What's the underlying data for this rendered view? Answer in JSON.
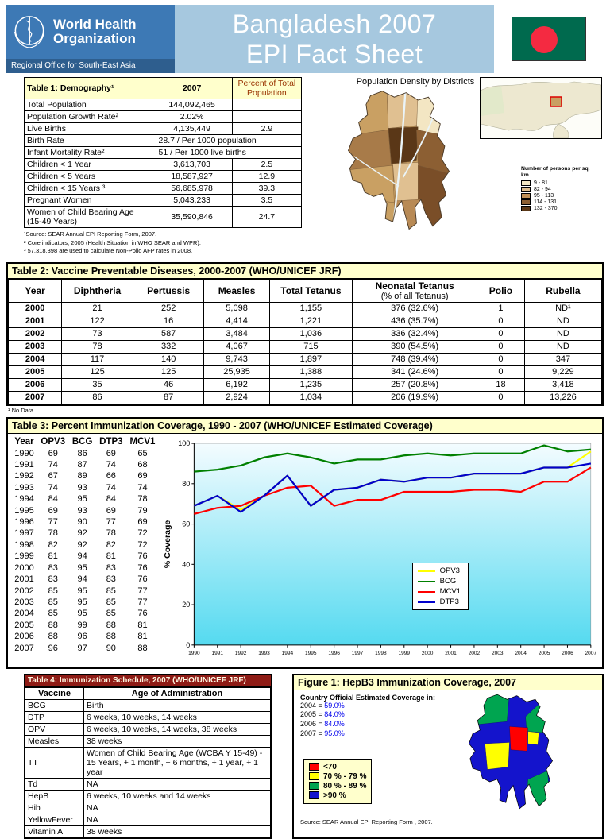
{
  "header": {
    "org_name_line1": "World Health",
    "org_name_line2": "Organization",
    "region": "Regional Office for South-East Asia",
    "title_line1": "Bangladesh 2007",
    "title_line2": "EPI Fact Sheet",
    "flag_green": "#006A4E",
    "flag_red": "#F42A41"
  },
  "table1": {
    "title": "Table 1:  Demography¹",
    "col_year": "2007",
    "col_percent": "Percent of Total Population",
    "rows": [
      {
        "label": "Total Population",
        "value": "144,092,465",
        "percent": ""
      },
      {
        "label": "Population Growth Rate²",
        "value": "2.02%",
        "percent": ""
      },
      {
        "label": "Live Births",
        "value": "4,135,449",
        "percent": "2.9"
      },
      {
        "label": "Birth Rate",
        "value": "28.7 / Per 1000 population",
        "span": true
      },
      {
        "label": "Infant Mortality Rate²",
        "value": "51 / Per 1000 live births",
        "span": true
      },
      {
        "label": "Children < 1 Year",
        "value": "3,613,703",
        "percent": "2.5"
      },
      {
        "label": "Children < 5 Years",
        "value": "18,587,927",
        "percent": "12.9"
      },
      {
        "label": "Children < 15 Years ³",
        "value": "56,685,978",
        "percent": "39.3"
      },
      {
        "label": "Pregnant Women",
        "value": "5,043,233",
        "percent": "3.5"
      },
      {
        "label": "Women of Child Bearing Age (15-49 Years)",
        "value": "35,590,846",
        "percent": "24.7"
      }
    ],
    "footnotes": [
      "¹Source: SEAR Annual EPI Reporting Form, 2007.",
      "² Core indicators, 2005 (Health Situation in WHO SEAR and WPR).",
      "³ 57,318,398 are used to calculate Non-Polio AFP rates in 2008."
    ]
  },
  "density_map": {
    "title": "Population Density by Districts",
    "legend_title": "Number of persons per sq. km",
    "legend_items": [
      {
        "label": "9 - 81",
        "color": "#F3E6C3"
      },
      {
        "label": "82 - 94",
        "color": "#E0C091"
      },
      {
        "label": "95 - 113",
        "color": "#C09058"
      },
      {
        "label": "114 - 131",
        "color": "#8C5F33"
      },
      {
        "label": "132 - 370",
        "color": "#5A3717"
      }
    ]
  },
  "table2": {
    "title": "Table 2:  Vaccine Preventable Diseases, 2000-2007 (WHO/UNICEF JRF)",
    "headers": [
      "Year",
      "Diphtheria",
      "Pertussis",
      "Measles",
      "Total Tetanus",
      [
        "Neonatal Tetanus",
        "(% of all Tetanus)"
      ],
      "Polio",
      "Rubella"
    ],
    "rows": [
      [
        "2000",
        "21",
        "252",
        "5,098",
        "1,155",
        "376 (32.6%)",
        "1",
        "ND¹"
      ],
      [
        "2001",
        "122",
        "16",
        "4,414",
        "1,221",
        "436 (35.7%)",
        "0",
        "ND"
      ],
      [
        "2002",
        "73",
        "587",
        "3,484",
        "1,036",
        "336 (32.4%)",
        "0",
        "ND"
      ],
      [
        "2003",
        "78",
        "332",
        "4,067",
        "715",
        "390 (54.5%)",
        "0",
        "ND"
      ],
      [
        "2004",
        "117",
        "140",
        "9,743",
        "1,897",
        "748 (39.4%)",
        "0",
        "347"
      ],
      [
        "2005",
        "125",
        "125",
        "25,935",
        "1,388",
        "341 (24.6%)",
        "0",
        "9,229"
      ],
      [
        "2006",
        "35",
        "46",
        "6,192",
        "1,235",
        "257 (20.8%)",
        "18",
        "3,418"
      ],
      [
        "2007",
        "86",
        "87",
        "2,924",
        "1,034",
        "206 (19.9%)",
        "0",
        "13,226"
      ]
    ],
    "footnote": "¹ No Data"
  },
  "table3": {
    "title": "Table 3:  Percent Immunization Coverage, 1990 - 2007 (WHO/UNICEF Estimated Coverage)",
    "headers": [
      "Year",
      "OPV3",
      "BCG",
      "DTP3",
      "MCV1"
    ],
    "rows": [
      [
        "1990",
        69,
        86,
        69,
        65
      ],
      [
        "1991",
        74,
        87,
        74,
        68
      ],
      [
        "1992",
        67,
        89,
        66,
        69
      ],
      [
        "1993",
        74,
        93,
        74,
        74
      ],
      [
        "1994",
        84,
        95,
        84,
        78
      ],
      [
        "1995",
        69,
        93,
        69,
        79
      ],
      [
        "1996",
        77,
        90,
        77,
        69
      ],
      [
        "1997",
        78,
        92,
        78,
        72
      ],
      [
        "1998",
        82,
        92,
        82,
        72
      ],
      [
        "1999",
        81,
        94,
        81,
        76
      ],
      [
        "2000",
        83,
        95,
        83,
        76
      ],
      [
        "2001",
        83,
        94,
        83,
        76
      ],
      [
        "2002",
        85,
        95,
        85,
        77
      ],
      [
        "2003",
        85,
        95,
        85,
        77
      ],
      [
        "2004",
        85,
        95,
        85,
        76
      ],
      [
        "2005",
        88,
        99,
        88,
        81
      ],
      [
        "2006",
        88,
        96,
        88,
        81
      ],
      [
        "2007",
        96,
        97,
        90,
        88
      ]
    ]
  },
  "chart_data": {
    "type": "line",
    "title": "Percent Immunization Coverage, 1990 - 2007",
    "ylabel": "% Coverage",
    "ylim": [
      0,
      100
    ],
    "grid": false,
    "legend_position": "center-right",
    "bg_top": "#F4FCFF",
    "bg_bottom": "#55DAF0",
    "x": [
      1990,
      1991,
      1992,
      1993,
      1994,
      1995,
      1996,
      1997,
      1998,
      1999,
      2000,
      2001,
      2002,
      2003,
      2004,
      2005,
      2006,
      2007
    ],
    "series": [
      {
        "name": "OPV3",
        "color": "#FFFF00",
        "values": [
          69,
          74,
          67,
          74,
          84,
          69,
          77,
          78,
          82,
          81,
          83,
          83,
          85,
          85,
          85,
          88,
          88,
          96
        ]
      },
      {
        "name": "BCG",
        "color": "#008000",
        "values": [
          86,
          87,
          89,
          93,
          95,
          93,
          90,
          92,
          92,
          94,
          95,
          94,
          95,
          95,
          95,
          99,
          96,
          97
        ]
      },
      {
        "name": "MCV1",
        "color": "#FF0000",
        "values": [
          65,
          68,
          69,
          74,
          78,
          79,
          69,
          72,
          72,
          76,
          76,
          76,
          77,
          77,
          76,
          81,
          81,
          88
        ]
      },
      {
        "name": "DTP3",
        "color": "#0000CC",
        "values": [
          69,
          74,
          66,
          74,
          84,
          69,
          77,
          78,
          82,
          81,
          83,
          83,
          85,
          85,
          85,
          88,
          88,
          90
        ]
      }
    ]
  },
  "table4": {
    "title": "Table 4:  Immunization Schedule, 2007 (WHO/UNICEF JRF)",
    "headers": [
      "Vaccine",
      "Age of Administration"
    ],
    "rows": [
      [
        "BCG",
        "Birth"
      ],
      [
        "DTP",
        "6 weeks, 10 weeks, 14 weeks"
      ],
      [
        "OPV",
        "6 weeks, 10 weeks, 14 weeks, 38 weeks"
      ],
      [
        "Measles",
        "38 weeks"
      ],
      [
        "TT",
        "Women of Child Bearing Age (WCBA Y 15-49) - 15 Years, + 1 month, + 6 months, + 1 year, + 1 year"
      ],
      [
        "Td",
        "NA"
      ],
      [
        "HepB",
        "6 weeks, 10 weeks and 14 weeks"
      ],
      [
        "Hib",
        "NA"
      ],
      [
        "YellowFever",
        "NA"
      ],
      [
        "Vitamin A",
        "38 weeks"
      ]
    ]
  },
  "figure1": {
    "title": "Figure 1:  HepB3 Immunization Coverage, 2007",
    "coverage_label": "Country Official Estimated Coverage in:",
    "coverage": [
      {
        "year": "2004",
        "value": "59.0%"
      },
      {
        "year": "2005",
        "value": "84.0%"
      },
      {
        "year": "2006",
        "value": "84.0%"
      },
      {
        "year": "2007",
        "value": "95.0%"
      }
    ],
    "legend": [
      {
        "label": "<70",
        "color": "#FF0000"
      },
      {
        "label": "70 % - 79 %",
        "color": "#FFFF00"
      },
      {
        "label": "80 % - 89 %",
        "color": "#00A550"
      },
      {
        "label": ">90 %",
        "color": "#1414CC"
      }
    ],
    "source": "Source: SEAR Annual EPI Reporting Form , 2007."
  }
}
